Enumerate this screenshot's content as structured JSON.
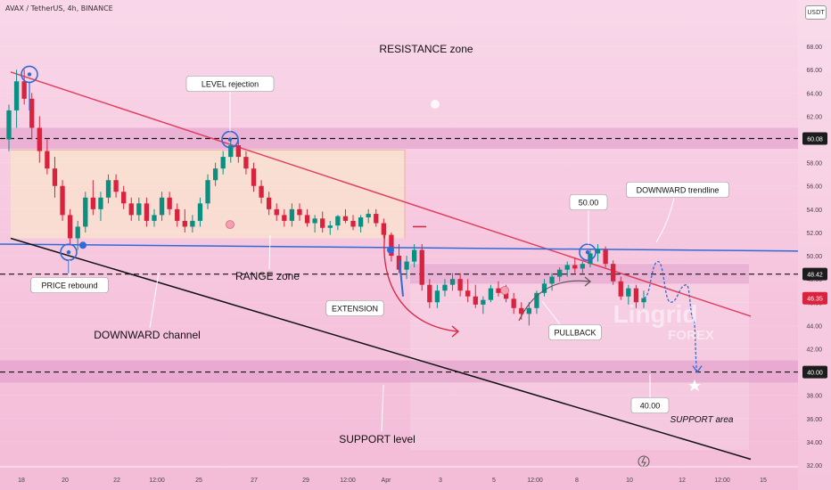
{
  "header": {
    "title": "AVAX / TetherUS, 4h, BINANCE",
    "quote_currency": "USDT"
  },
  "chart_data": {
    "type": "candlestick",
    "symbol": "AVAX / TetherUS",
    "timeframe": "4h",
    "exchange": "BINANCE",
    "ylim": [
      32,
      70
    ],
    "y_ticks": [
      "32.00",
      "34.00",
      "36.00",
      "38.00",
      "40.00",
      "42.00",
      "44.00",
      "46.00",
      "48.00",
      "50.00",
      "52.00",
      "54.00",
      "56.00",
      "58.00",
      "60.00",
      "62.00",
      "64.00",
      "66.00",
      "68.00"
    ],
    "x_ticks": [
      "18",
      "20",
      "22",
      "12:00",
      "25",
      "27",
      "29",
      "12:00",
      "Apr",
      "3",
      "5",
      "12:00",
      "8",
      "10",
      "12",
      "12:00",
      "15"
    ],
    "price_labels": [
      {
        "value": 60.08,
        "text": "60.08",
        "style": "dark"
      },
      {
        "value": 48.42,
        "text": "48.42",
        "style": "dark"
      },
      {
        "value": 46.35,
        "text": "46.35",
        "style": "red"
      },
      {
        "value": 40.0,
        "text": "40.00",
        "style": "dark"
      }
    ],
    "horizontal_levels": [
      {
        "name": "resistance",
        "value": 60.08,
        "zone": [
          59.2,
          61.0
        ]
      },
      {
        "name": "retest",
        "value": 48.42,
        "zone": [
          47.6,
          49.3
        ]
      },
      {
        "name": "support",
        "value": 40.0,
        "zone": [
          39.1,
          41.0
        ]
      }
    ],
    "annotations": {
      "resistance_zone": "RESISTANCE zone",
      "level_rejection": "LEVEL rejection",
      "price_rebound": "PRICE rebound",
      "range_zone": "RANGE zone",
      "downward_channel": "DOWNWARD channel",
      "support_level": "SUPPORT level",
      "extension": "EXTENSION",
      "pullback": "PULLBACK",
      "target_50": "50.00",
      "target_40": "40.00",
      "downward_trendline": "DOWNWARD trendline",
      "support_area": "SUPPORT area"
    },
    "watermark": {
      "line1": "Lingrid",
      "line2": "FOREX"
    },
    "colors": {
      "up": "#0a8f82",
      "down": "#d8223e",
      "red_trendline": "#e0405e",
      "blue_line": "#2f6bd6",
      "black_channel": "#111111",
      "range_fill": "#f9e0cf",
      "zone_fill": "#d98fc4",
      "circle": "#2f6bd6"
    },
    "candles": [
      [
        60.0,
        63.0,
        59.0,
        62.5
      ],
      [
        62.5,
        66.0,
        61.0,
        65.0
      ],
      [
        65.0,
        66.0,
        63.0,
        63.5
      ],
      [
        63.5,
        64.0,
        60.0,
        61.0
      ],
      [
        61.0,
        62.0,
        58.0,
        59.0
      ],
      [
        59.0,
        60.0,
        57.0,
        57.5
      ],
      [
        57.5,
        58.5,
        55.0,
        56.0
      ],
      [
        56.0,
        56.5,
        53.0,
        53.5
      ],
      [
        53.5,
        54.0,
        51.0,
        51.5
      ],
      [
        51.5,
        53.0,
        50.5,
        52.5
      ],
      [
        52.5,
        55.5,
        52.0,
        55.0
      ],
      [
        55.0,
        56.5,
        53.5,
        54.0
      ],
      [
        54.0,
        55.5,
        53.0,
        55.0
      ],
      [
        55.0,
        57.0,
        54.5,
        56.5
      ],
      [
        56.5,
        57.0,
        55.0,
        55.5
      ],
      [
        55.5,
        56.0,
        54.0,
        54.5
      ],
      [
        54.5,
        55.0,
        53.0,
        53.5
      ],
      [
        53.5,
        55.0,
        53.0,
        54.5
      ],
      [
        54.5,
        55.0,
        52.5,
        53.0
      ],
      [
        53.0,
        54.0,
        52.5,
        53.5
      ],
      [
        53.5,
        55.5,
        53.0,
        55.0
      ],
      [
        55.0,
        55.5,
        53.5,
        54.0
      ],
      [
        54.0,
        54.5,
        52.5,
        53.0
      ],
      [
        53.0,
        54.0,
        52.0,
        52.5
      ],
      [
        52.5,
        53.5,
        52.0,
        53.0
      ],
      [
        53.0,
        55.0,
        52.5,
        54.5
      ],
      [
        54.5,
        57.0,
        54.0,
        56.5
      ],
      [
        56.5,
        58.0,
        56.0,
        57.5
      ],
      [
        57.5,
        59.0,
        57.0,
        58.5
      ],
      [
        58.5,
        60.0,
        58.0,
        59.5
      ],
      [
        59.5,
        60.0,
        58.0,
        58.5
      ],
      [
        58.5,
        59.0,
        57.0,
        57.5
      ],
      [
        57.5,
        58.0,
        55.5,
        56.0
      ],
      [
        56.0,
        56.5,
        54.5,
        55.0
      ],
      [
        55.0,
        55.5,
        53.5,
        54.0
      ],
      [
        54.0,
        54.5,
        53.0,
        53.5
      ],
      [
        53.5,
        54.0,
        52.5,
        53.0
      ],
      [
        53.0,
        54.5,
        52.5,
        54.0
      ],
      [
        54.0,
        54.5,
        53.0,
        53.5
      ],
      [
        53.5,
        54.0,
        52.5,
        52.8
      ],
      [
        52.8,
        53.5,
        52.0,
        53.2
      ],
      [
        53.2,
        53.8,
        52.0,
        52.4
      ],
      [
        52.4,
        53.0,
        51.8,
        52.6
      ],
      [
        52.6,
        53.5,
        52.2,
        53.4
      ],
      [
        53.4,
        54.0,
        52.8,
        53.0
      ],
      [
        53.0,
        53.5,
        52.2,
        52.5
      ],
      [
        52.5,
        53.5,
        52.0,
        53.3
      ],
      [
        53.3,
        54.0,
        52.8,
        53.6
      ],
      [
        53.6,
        54.0,
        52.5,
        52.8
      ],
      [
        52.8,
        53.2,
        51.5,
        51.8
      ],
      [
        51.8,
        52.0,
        49.5,
        50.0
      ],
      [
        50.0,
        51.0,
        48.5,
        48.8
      ],
      [
        48.8,
        50.0,
        48.0,
        49.5
      ],
      [
        49.5,
        51.0,
        49.0,
        50.5
      ],
      [
        50.5,
        51.0,
        47.0,
        47.5
      ],
      [
        47.5,
        48.0,
        45.5,
        46.0
      ],
      [
        46.0,
        47.5,
        45.5,
        47.0
      ],
      [
        47.0,
        48.0,
        46.5,
        47.5
      ],
      [
        47.5,
        48.5,
        47.0,
        48.0
      ],
      [
        48.0,
        48.5,
        46.5,
        47.0
      ],
      [
        47.0,
        48.0,
        46.0,
        46.5
      ],
      [
        46.5,
        47.5,
        45.5,
        45.8
      ],
      [
        45.8,
        46.5,
        45.0,
        46.2
      ],
      [
        46.2,
        47.5,
        46.0,
        47.2
      ],
      [
        47.2,
        47.8,
        46.5,
        46.8
      ],
      [
        46.8,
        47.5,
        46.0,
        46.3
      ],
      [
        46.3,
        46.8,
        45.0,
        45.5
      ],
      [
        45.5,
        46.0,
        44.5,
        45.0
      ],
      [
        45.0,
        46.0,
        44.0,
        45.5
      ],
      [
        45.5,
        47.0,
        45.0,
        46.8
      ],
      [
        46.8,
        48.0,
        46.5,
        47.6
      ],
      [
        47.6,
        48.5,
        47.0,
        48.2
      ],
      [
        48.2,
        49.0,
        47.8,
        48.8
      ],
      [
        48.8,
        49.5,
        48.2,
        49.2
      ],
      [
        49.2,
        49.8,
        48.5,
        48.9
      ],
      [
        48.9,
        49.5,
        48.5,
        49.3
      ],
      [
        49.3,
        50.5,
        49.0,
        50.2
      ],
      [
        50.2,
        51.0,
        49.5,
        50.5
      ],
      [
        50.5,
        50.8,
        49.0,
        49.3
      ],
      [
        49.3,
        49.6,
        47.5,
        47.8
      ],
      [
        47.8,
        48.2,
        46.2,
        46.5
      ],
      [
        46.5,
        47.5,
        45.8,
        47.2
      ],
      [
        47.2,
        47.5,
        45.5,
        46.0
      ],
      [
        46.0,
        47.0,
        45.5,
        46.35
      ]
    ],
    "projection": [
      46.35,
      49.5,
      46.0,
      47.5,
      44.5,
      40.0
    ]
  }
}
